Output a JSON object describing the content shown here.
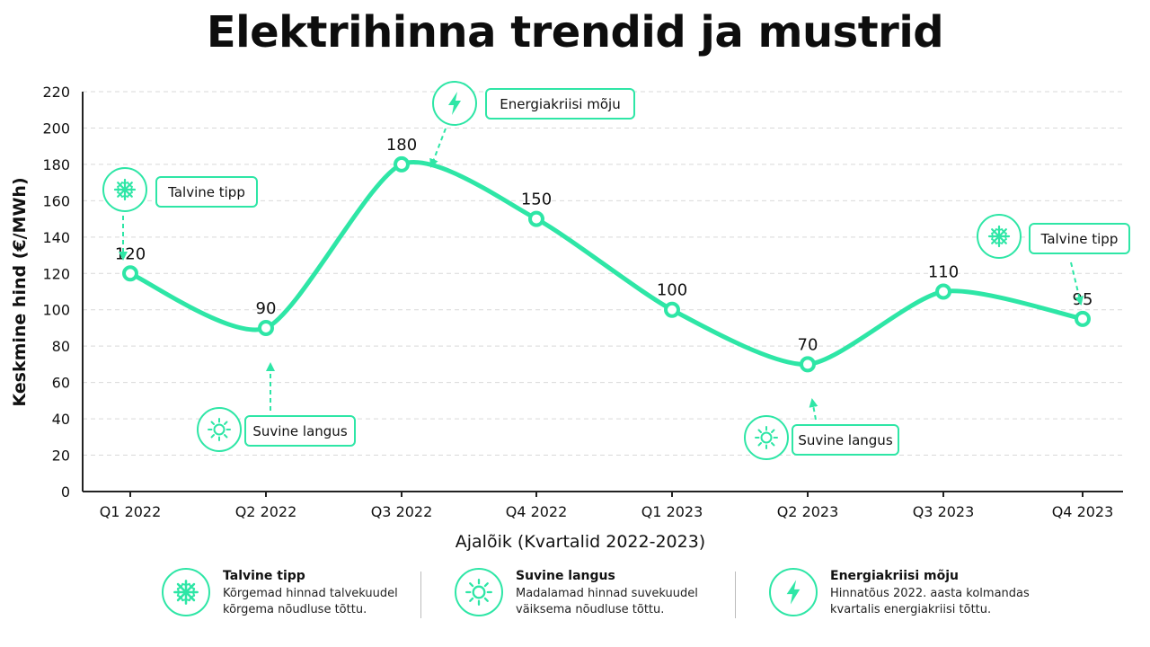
{
  "title": "Elektrihinna trendid ja mustrid",
  "colors": {
    "accent": "#2ee6a6",
    "text": "#111111",
    "grid": "#d9d9d9"
  },
  "chart_data": {
    "type": "line",
    "title": "Elektrihinna trendid ja mustrid",
    "xlabel": "Ajalõik (Kvartalid 2022-2023)",
    "ylabel": "Keskmine hind (€/MWh)",
    "ylim": [
      0,
      220
    ],
    "yticks": [
      0,
      20,
      40,
      60,
      80,
      100,
      120,
      140,
      160,
      180,
      200,
      220
    ],
    "grid": true,
    "categories": [
      "Q1 2022",
      "Q2 2022",
      "Q3 2022",
      "Q4 2022",
      "Q1 2023",
      "Q2 2023",
      "Q3 2023",
      "Q4 2023"
    ],
    "series": [
      {
        "values": [
          120,
          90,
          180,
          150,
          100,
          70,
          110,
          95
        ]
      }
    ],
    "data_labels": [
      "120",
      "90",
      "180",
      "150",
      "100",
      "70",
      "110",
      "95"
    ],
    "annotations": [
      {
        "label": "Talvine tipp",
        "icon": "snowflake-icon",
        "point_index": 0
      },
      {
        "label": "Suvine langus",
        "icon": "sun-icon",
        "point_index": 1
      },
      {
        "label": "Energiakriisi mõju",
        "icon": "lightning-icon",
        "point_index": 2
      },
      {
        "label": "Suvine langus",
        "icon": "sun-icon",
        "point_index": 5
      },
      {
        "label": "Talvine tipp",
        "icon": "snowflake-icon",
        "point_index": 7
      }
    ]
  },
  "legend": [
    {
      "title": "Talvine tipp",
      "text1": "Kõrgemad hinnad talvekuudel",
      "text2": "kõrgema nõudluse tõttu.",
      "icon": "snowflake-icon"
    },
    {
      "title": "Suvine langus",
      "text1": "Madalamad hinnad suvekuudel",
      "text2": "väiksema nõudluse tõttu.",
      "icon": "sun-icon"
    },
    {
      "title": "Energiakriisi mõju",
      "text1": "Hinnatõus 2022. aasta kolmandas",
      "text2": "kvartalis energiakriisi tõttu.",
      "icon": "lightning-icon"
    }
  ]
}
